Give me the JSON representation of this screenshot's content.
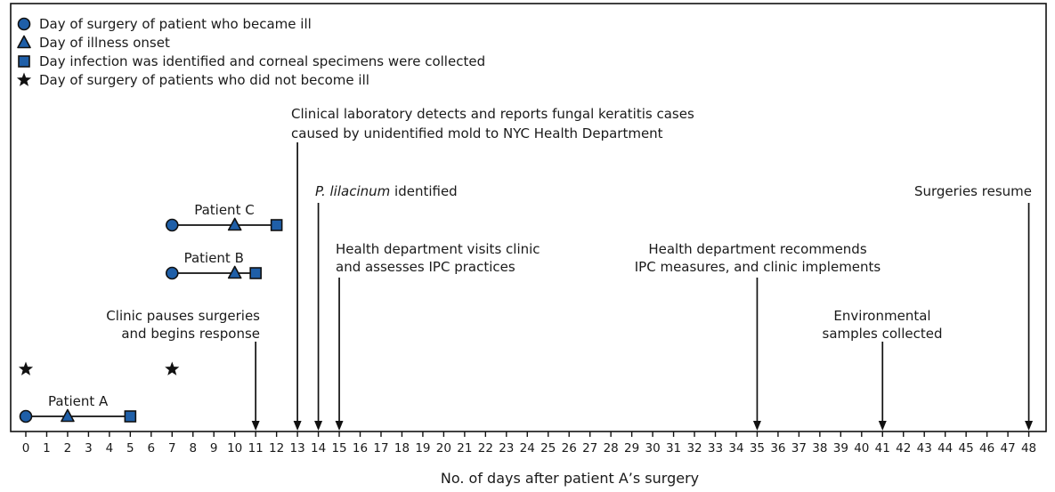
{
  "chart_data": {
    "type": "timeline",
    "xlabel": "No. of days after patient A’s surgery",
    "xlim": [
      0,
      48
    ],
    "x_ticks": [
      0,
      1,
      2,
      3,
      4,
      5,
      6,
      7,
      8,
      9,
      10,
      11,
      12,
      13,
      14,
      15,
      16,
      17,
      18,
      19,
      20,
      21,
      22,
      23,
      24,
      25,
      26,
      27,
      28,
      29,
      30,
      31,
      32,
      33,
      34,
      35,
      36,
      37,
      38,
      39,
      40,
      41,
      42,
      43,
      44,
      45,
      46,
      47,
      48
    ],
    "legend_position": "top-left",
    "legend": [
      {
        "marker": "circle",
        "label": "Day of surgery of patient who became ill"
      },
      {
        "marker": "triangle",
        "label": "Day of illness onset"
      },
      {
        "marker": "square",
        "label": "Day infection was identified and corneal specimens were collected"
      },
      {
        "marker": "star",
        "label": "Day of surgery of patients who did not become ill"
      }
    ],
    "patients": [
      {
        "label": "Patient C",
        "surgery": 7,
        "onset": 10,
        "identified": 12
      },
      {
        "label": "Patient B",
        "surgery": 7,
        "onset": 10,
        "identified": 11
      },
      {
        "label": "Patient A",
        "surgery": 0,
        "onset": 2,
        "identified": 5
      }
    ],
    "non_ill_surgeries": [
      0,
      7
    ],
    "events": [
      {
        "day": 11,
        "lines": [
          "Clinic pauses surgeries",
          "and begins response"
        ],
        "italic_prefix": ""
      },
      {
        "day": 13,
        "lines": [
          "Clinical laboratory detects and reports fungal keratitis cases",
          "caused by unidentified mold to NYC Health Department"
        ],
        "italic_prefix": ""
      },
      {
        "day": 14,
        "lines": [
          " identified"
        ],
        "italic_prefix": "P. lilacinum"
      },
      {
        "day": 15,
        "lines": [
          "Health department visits clinic",
          "and assesses IPC practices"
        ],
        "italic_prefix": ""
      },
      {
        "day": 35,
        "lines": [
          "Health department recommends",
          "IPC measures, and clinic implements"
        ],
        "italic_prefix": ""
      },
      {
        "day": 41,
        "lines": [
          "Environmental",
          "samples collected"
        ],
        "italic_prefix": ""
      },
      {
        "day": 48,
        "lines": [
          "Surgeries resume"
        ],
        "italic_prefix": ""
      }
    ],
    "colors": {
      "marker_fill": "#1f5fa8",
      "marker_stroke": "#111111",
      "line": "#111111"
    }
  }
}
